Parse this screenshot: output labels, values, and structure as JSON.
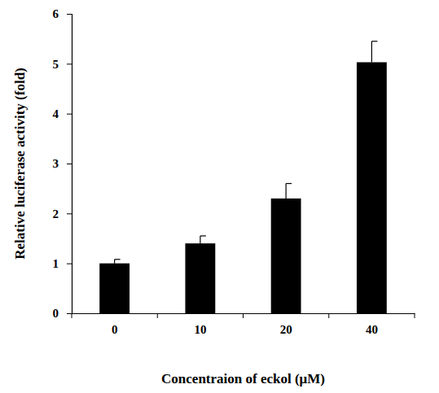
{
  "chart_data": {
    "type": "bar",
    "x_label": "Concentraion of eckol (μM)",
    "y_label": "Relative luciferase activity (fold)",
    "categories": [
      "0",
      "10",
      "20",
      "40"
    ],
    "values": [
      1.0,
      1.4,
      2.3,
      5.03
    ],
    "errors": [
      0.08,
      0.15,
      0.3,
      0.42
    ],
    "color": "#000000",
    "ylim": [
      0,
      6
    ],
    "yticks": [
      0,
      1,
      2,
      3,
      4,
      5,
      6
    ],
    "grid": false
  }
}
